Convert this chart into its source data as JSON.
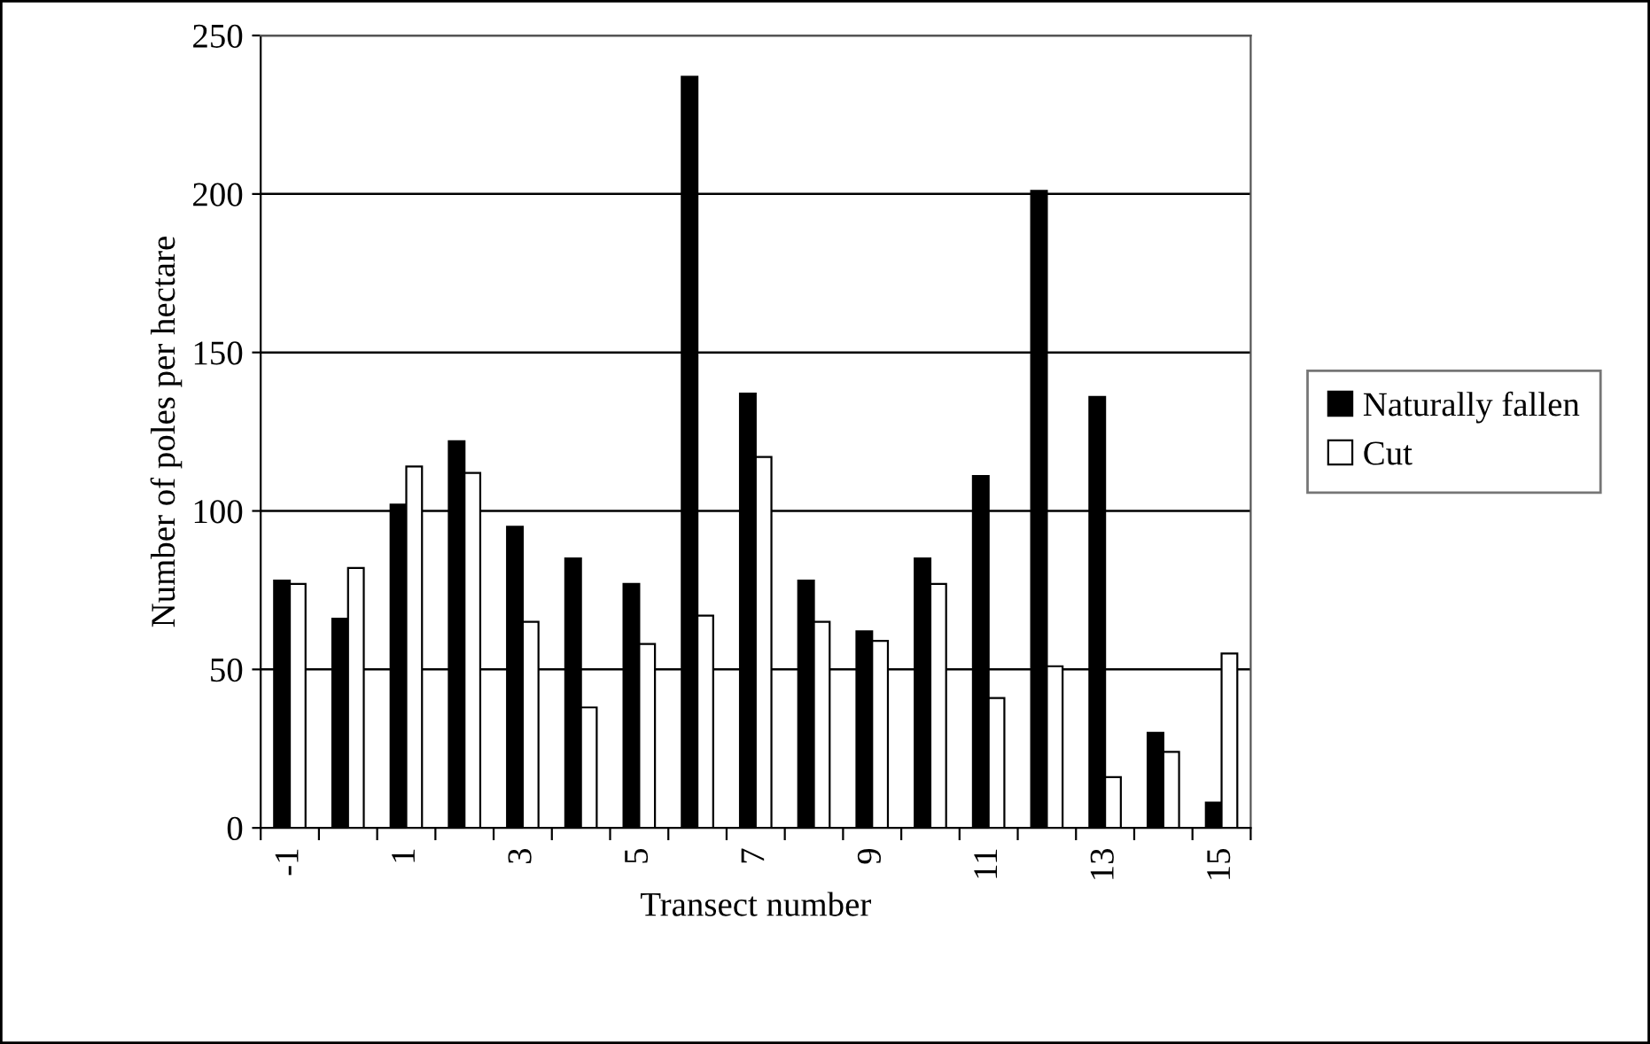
{
  "chart_data": {
    "type": "bar",
    "xlabel": "Transect number",
    "ylabel": "Number of poles per hectare",
    "categories": [
      "-1",
      null,
      "1",
      null,
      "3",
      null,
      "5",
      null,
      "7",
      null,
      "9",
      null,
      "11",
      null,
      "13",
      null,
      "15"
    ],
    "series": [
      {
        "name": "Naturally fallen",
        "color": "#000000",
        "values": [
          78,
          66,
          102,
          122,
          95,
          85,
          77,
          237,
          137,
          78,
          62,
          85,
          111,
          201,
          136,
          30,
          8
        ]
      },
      {
        "name": "Cut",
        "color": "#ffffff",
        "values": [
          77,
          82,
          114,
          112,
          65,
          38,
          58,
          67,
          117,
          65,
          59,
          77,
          41,
          51,
          16,
          24,
          55
        ]
      }
    ],
    "ylim": [
      0,
      250
    ],
    "yticks": [
      0,
      50,
      100,
      150,
      200,
      250
    ],
    "grid": "y",
    "legend": "right"
  }
}
